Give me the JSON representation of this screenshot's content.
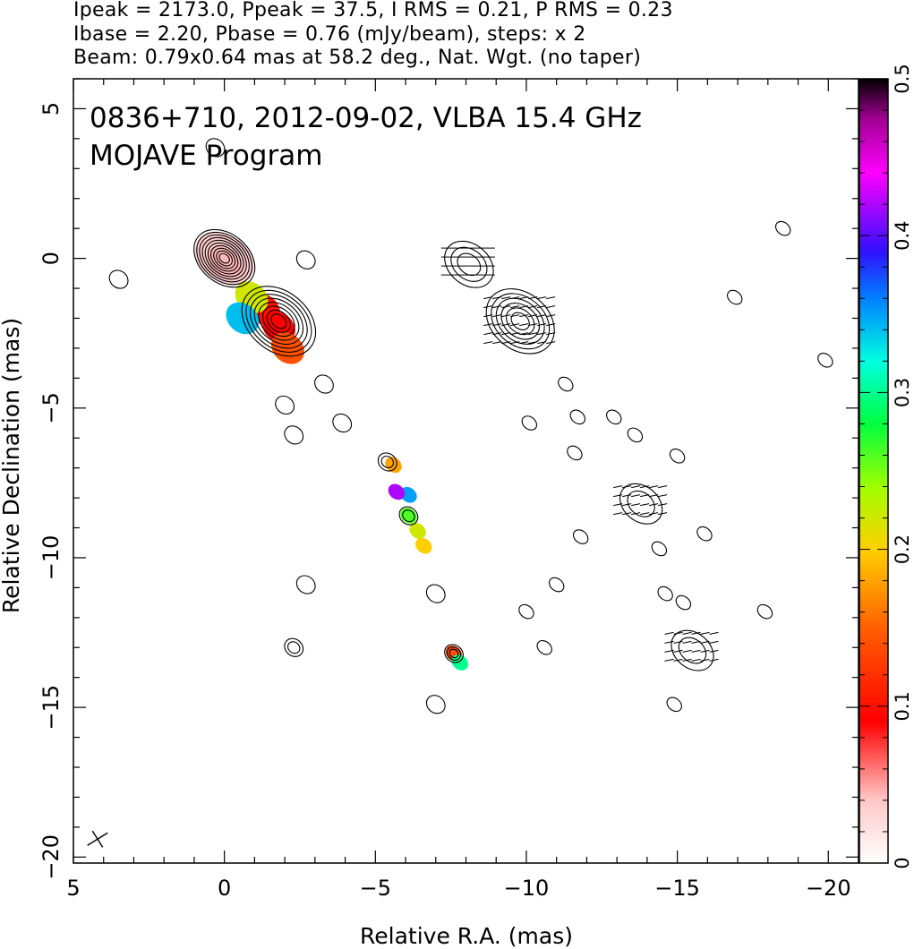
{
  "header": {
    "line1": "Ipeak = 2173.0, Ppeak = 37.5, I RMS = 0.21, P RMS = 0.23",
    "line2": "Ibase = 2.20, Pbase = 0.76 (mJy/beam), steps: x 2",
    "line3": "Beam: 0.79x0.64 mas at 58.2 deg., Nat. Wgt. (no taper)"
  },
  "chart_data": {
    "type": "heatmap",
    "title": "0836+710, 2012-09-02, VLBA 15.4 GHz",
    "subtitle": "MOJAVE Program",
    "xlabel": "Relative R.A. (mas)",
    "ylabel": "Relative Declination (mas)",
    "xlim": [
      5,
      -21
    ],
    "ylim": [
      -20.2,
      6
    ],
    "x_ticks": [
      5,
      0,
      -5,
      -10,
      -15,
      -20
    ],
    "y_ticks": [
      5,
      0,
      -5,
      -10,
      -15,
      -20
    ],
    "colorbar": {
      "min": 0,
      "max": 0.5,
      "ticks": [
        0,
        0.1,
        0.2,
        0.3,
        0.4,
        0.5
      ]
    },
    "grid": false,
    "beam": {
      "major_mas": 0.79,
      "minor_mas": 0.64,
      "pa_deg": 58.2,
      "x": 4.2,
      "y": -19.4
    },
    "stokes_I_components": [
      {
        "x": 0.0,
        "y": 0.0,
        "levels": 10
      },
      {
        "x": -1.8,
        "y": -2.1,
        "levels": 8
      },
      {
        "x": -5.4,
        "y": -6.8,
        "levels": 2
      },
      {
        "x": -6.1,
        "y": -8.6,
        "levels": 2
      },
      {
        "x": -7.6,
        "y": -13.2,
        "levels": 3
      },
      {
        "x": -2.3,
        "y": -13.0,
        "levels": 2
      },
      {
        "x": -7.0,
        "y": -11.2,
        "levels": 1
      },
      {
        "x": 3.5,
        "y": -0.7,
        "levels": 1
      },
      {
        "x": -2.7,
        "y": -0.05,
        "levels": 1
      },
      {
        "x": -3.3,
        "y": -4.2,
        "levels": 1
      },
      {
        "x": -2.0,
        "y": -4.9,
        "levels": 1
      },
      {
        "x": -2.3,
        "y": -5.9,
        "levels": 1
      },
      {
        "x": -3.9,
        "y": -5.5,
        "levels": 1
      },
      {
        "x": -2.7,
        "y": -10.9,
        "levels": 1
      },
      {
        "x": 0.3,
        "y": 3.7,
        "levels": 1
      },
      {
        "x": -7.0,
        "y": -14.9,
        "levels": 1
      }
    ],
    "pol_components": [
      {
        "x": -8.1,
        "y": -0.2,
        "levels": 3
      },
      {
        "x": -9.8,
        "y": -2.1,
        "levels": 6
      },
      {
        "x": -13.8,
        "y": -8.2,
        "levels": 2
      },
      {
        "x": -15.5,
        "y": -13.1,
        "levels": 2
      },
      {
        "x": -11.6,
        "y": -6.5,
        "levels": 1
      },
      {
        "x": -11.3,
        "y": -4.2,
        "levels": 1
      },
      {
        "x": -11.7,
        "y": -5.3,
        "levels": 1
      },
      {
        "x": -10.1,
        "y": -5.5,
        "levels": 1
      },
      {
        "x": -12.9,
        "y": -5.3,
        "levels": 1
      },
      {
        "x": -14.4,
        "y": -9.7,
        "levels": 1
      },
      {
        "x": -15.9,
        "y": -9.2,
        "levels": 1
      },
      {
        "x": -14.6,
        "y": -11.2,
        "levels": 1
      },
      {
        "x": -15.2,
        "y": -11.5,
        "levels": 1
      },
      {
        "x": -14.9,
        "y": -14.9,
        "levels": 1
      },
      {
        "x": -17.9,
        "y": -11.8,
        "levels": 1
      },
      {
        "x": -16.9,
        "y": -1.3,
        "levels": 1
      },
      {
        "x": -19.9,
        "y": -3.4,
        "levels": 1
      },
      {
        "x": -18.5,
        "y": 1.0,
        "levels": 1
      },
      {
        "x": -11.8,
        "y": -9.3,
        "levels": 1
      },
      {
        "x": -11.0,
        "y": -10.9,
        "levels": 1
      },
      {
        "x": -10.0,
        "y": -11.8,
        "levels": 1
      },
      {
        "x": -10.6,
        "y": -13.0,
        "levels": 1
      },
      {
        "x": -13.6,
        "y": -5.9,
        "levels": 1
      },
      {
        "x": -15.0,
        "y": -6.6,
        "levels": 1
      }
    ],
    "fractional_pol_regions": [
      {
        "x": -1.3,
        "y": -1.7,
        "fpol": 0.1
      },
      {
        "x": -1.8,
        "y": -2.3,
        "fpol": 0.09
      },
      {
        "x": -2.1,
        "y": -3.0,
        "fpol": 0.14
      },
      {
        "x": -0.9,
        "y": -1.3,
        "fpol": 0.22
      },
      {
        "x": -0.6,
        "y": -2.0,
        "fpol": 0.34
      },
      {
        "x": -5.6,
        "y": -6.9,
        "fpol": 0.18
      },
      {
        "x": -6.1,
        "y": -7.9,
        "fpol": 0.35
      },
      {
        "x": -6.1,
        "y": -8.6,
        "fpol": 0.26
      },
      {
        "x": -6.4,
        "y": -9.1,
        "fpol": 0.22
      },
      {
        "x": -6.6,
        "y": -9.6,
        "fpol": 0.2
      },
      {
        "x": -5.7,
        "y": -7.8,
        "fpol": 0.42
      },
      {
        "x": -7.6,
        "y": -13.2,
        "fpol": 0.14
      },
      {
        "x": -7.8,
        "y": -13.5,
        "fpol": 0.3
      }
    ]
  }
}
